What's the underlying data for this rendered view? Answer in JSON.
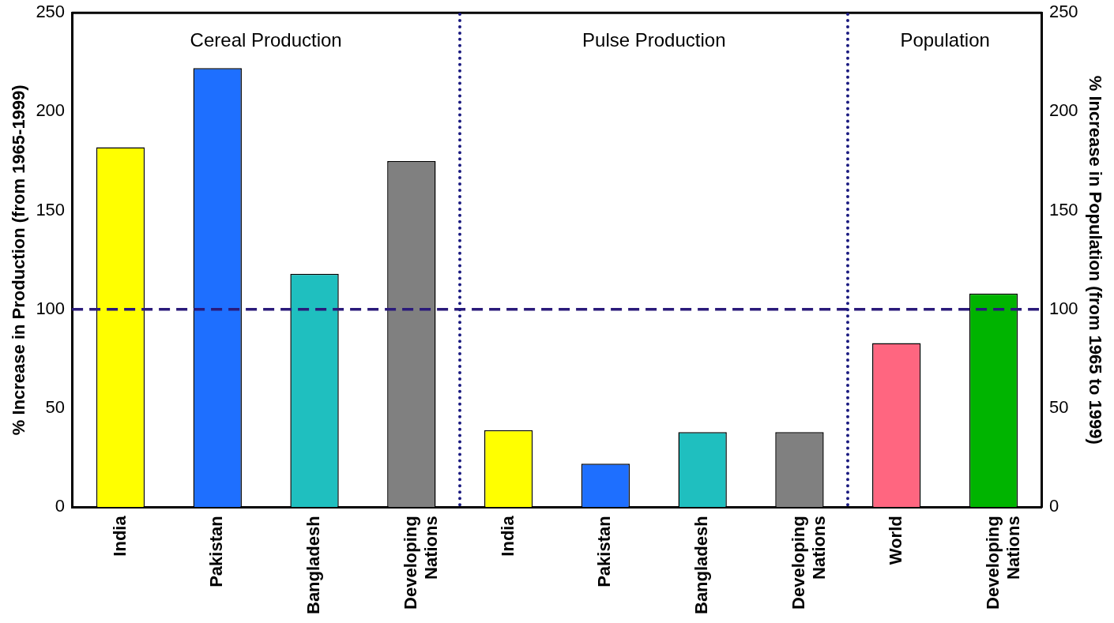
{
  "chart_data": {
    "type": "bar",
    "ylabel": "% Increase in Production (from 1965-1999)",
    "y2label": "% Increase in Population (from 1965 to 1999)",
    "categories": [
      "India",
      "Pakistan",
      "Bangladesh",
      "Developing Nations",
      "India",
      "Pakistan",
      "Bangladesh",
      "Developing Nations",
      "World",
      "Developing Nations"
    ],
    "values": [
      182,
      222,
      118,
      175,
      39,
      22,
      38,
      38,
      83,
      108
    ],
    "colors": [
      "#ffff00",
      "#1e6fff",
      "#1fbfbf",
      "#808080",
      "#ffff00",
      "#1e6fff",
      "#1fbfbf",
      "#808080",
      "#ff6680",
      "#00b400"
    ],
    "ylim": [
      0,
      250
    ],
    "yticks": [
      0,
      50,
      100,
      150,
      200,
      250
    ],
    "y2lim": [
      0,
      250
    ],
    "y2ticks": [
      0,
      50,
      100,
      150,
      200,
      250
    ],
    "ref_lines": [
      {
        "axis": "y",
        "value": 100,
        "color": "#2a1a7a",
        "line_style": "dashed"
      }
    ],
    "annotations": [
      "Cereal Production",
      "Pulse Production",
      "Population"
    ],
    "grid": false,
    "legend": false
  }
}
